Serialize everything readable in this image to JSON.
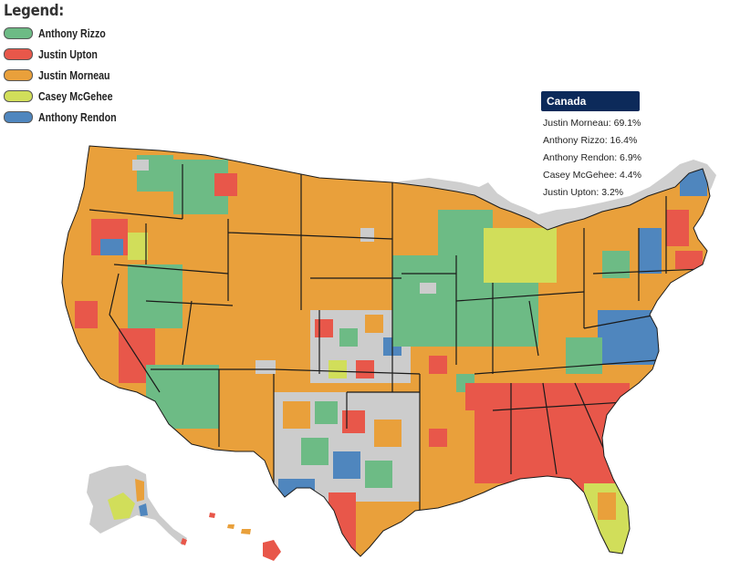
{
  "legend": {
    "title": "Legend:",
    "items": [
      {
        "label": "Anthony Rizzo",
        "color": "#6dbb85"
      },
      {
        "label": "Justin Upton",
        "color": "#e8574a"
      },
      {
        "label": "Justin Morneau",
        "color": "#e9a03b"
      },
      {
        "label": "Casey McGehee",
        "color": "#d1de5a"
      },
      {
        "label": "Anthony Rendon",
        "color": "#4f86be"
      }
    ]
  },
  "tooltip": {
    "title": "Canada",
    "rows": [
      "Justin Morneau: 69.1%",
      "Anthony Rizzo: 16.4%",
      "Anthony Rendon: 6.9%",
      "Casey McGehee: 4.4%",
      "Justin Upton: 3.2%"
    ]
  },
  "colors": {
    "canada": "#cfcfcf",
    "no_data": "#cccccc",
    "state_border": "#1a1a1a",
    "tooltip_bg": "#0c2a5a"
  }
}
